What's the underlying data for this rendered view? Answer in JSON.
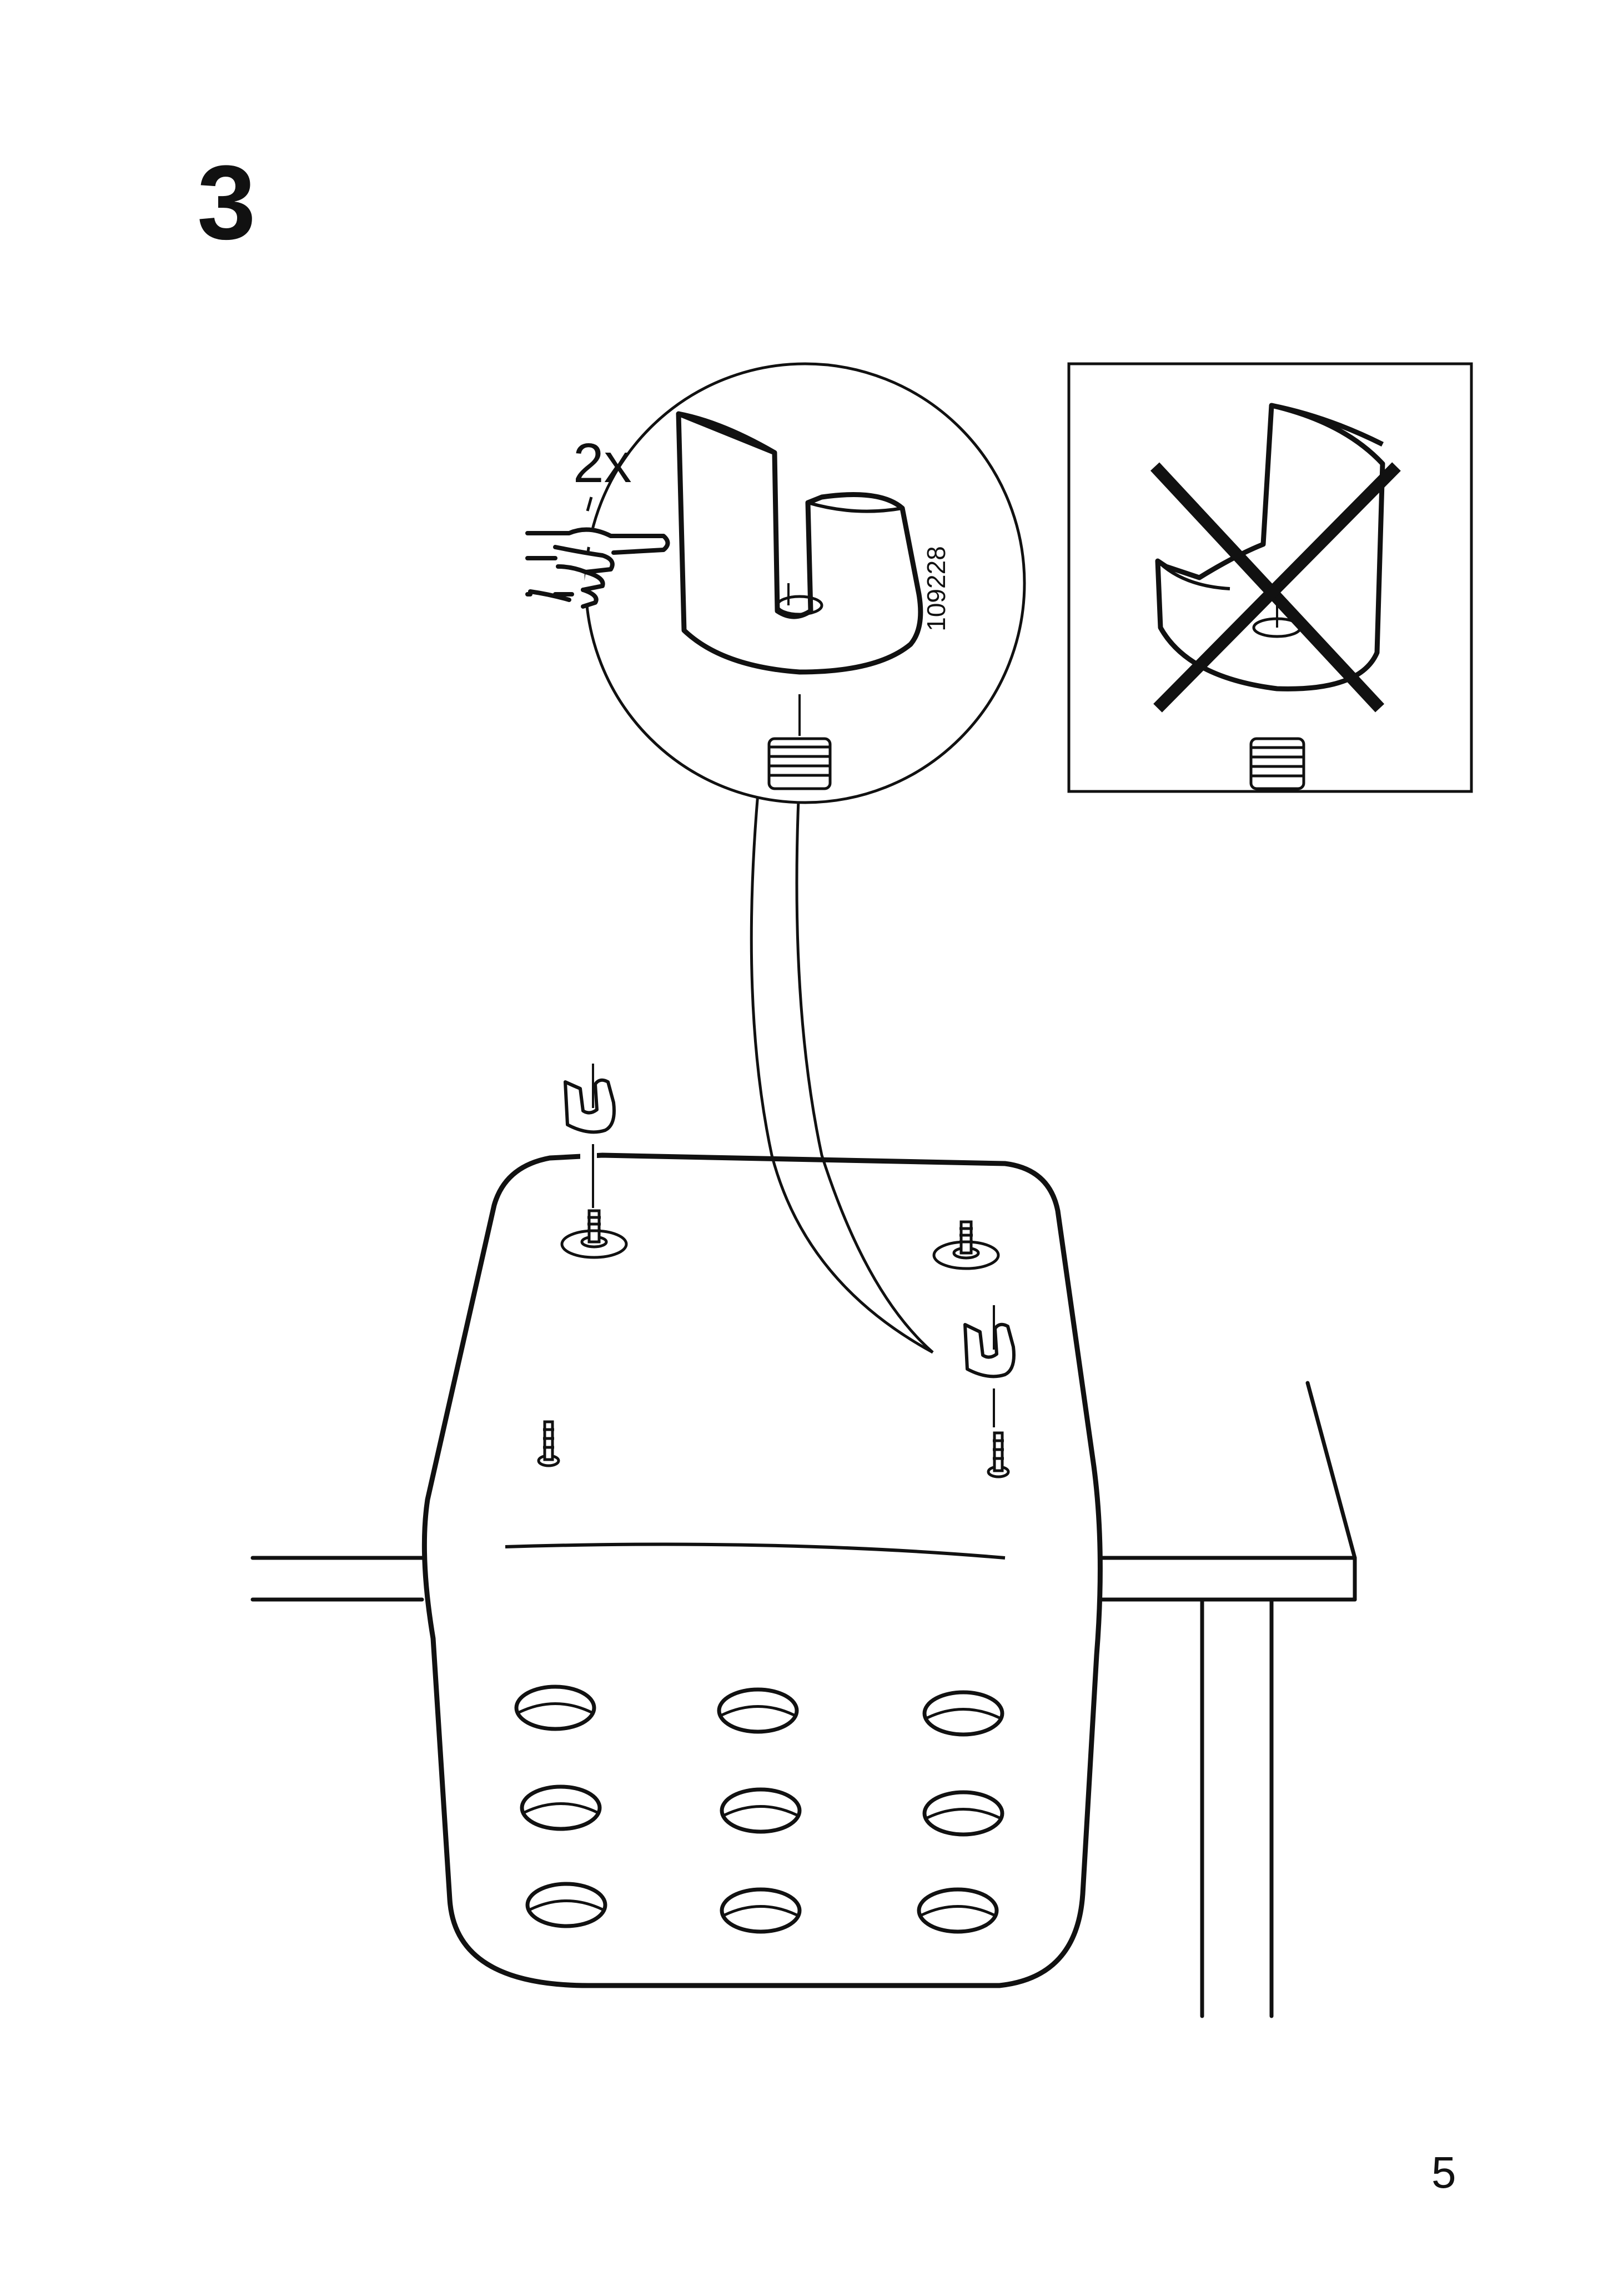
{
  "step": {
    "number": "3"
  },
  "detail_callout": {
    "quantity_label": "2x",
    "part_number": "109228"
  },
  "page": {
    "number": "5"
  },
  "colors": {
    "line": "#111111",
    "background": "#ffffff"
  },
  "icons": [
    "pointing-hand-icon",
    "cross-out-icon"
  ]
}
